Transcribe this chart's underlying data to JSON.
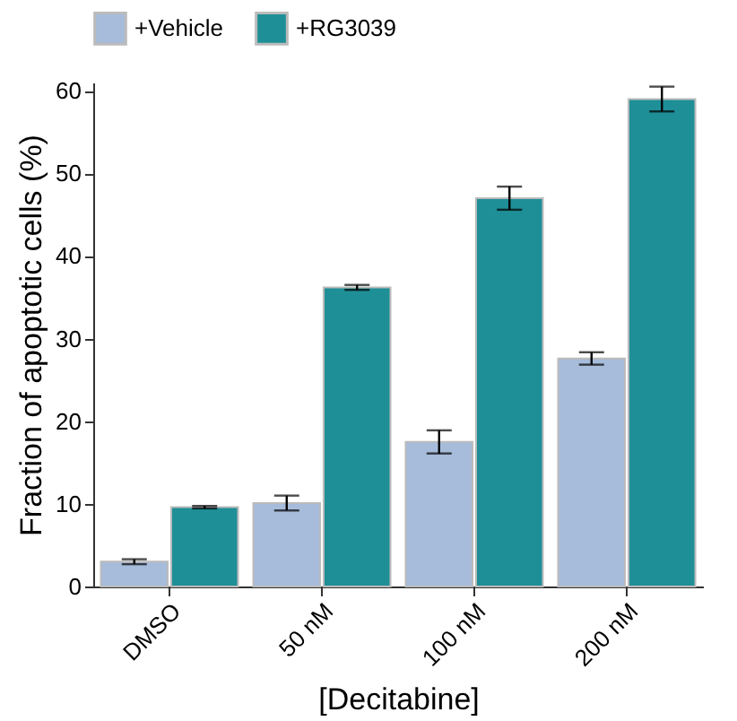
{
  "chart_data": {
    "type": "bar",
    "xlabel": "[Decitabine]",
    "ylabel": "Fraction of apoptotic cells (%)",
    "categories": [
      "DMSO",
      "50 nM",
      "100 nM",
      "200 nM"
    ],
    "series": [
      {
        "name": "+Vehicle",
        "color": "#a7bcdb",
        "values": [
          3.0,
          10.1,
          17.5,
          27.6
        ],
        "errors": [
          0.3,
          0.9,
          1.4,
          0.75
        ]
      },
      {
        "name": "+RG3039",
        "color": "#1e8f97",
        "values": [
          9.6,
          36.2,
          47.0,
          59.0
        ],
        "errors": [
          0.15,
          0.3,
          1.4,
          1.5
        ]
      }
    ],
    "ylim": [
      0,
      61
    ],
    "yticks": [
      0,
      10,
      20,
      30,
      40,
      50,
      60
    ],
    "grid": false,
    "legend": "top"
  }
}
